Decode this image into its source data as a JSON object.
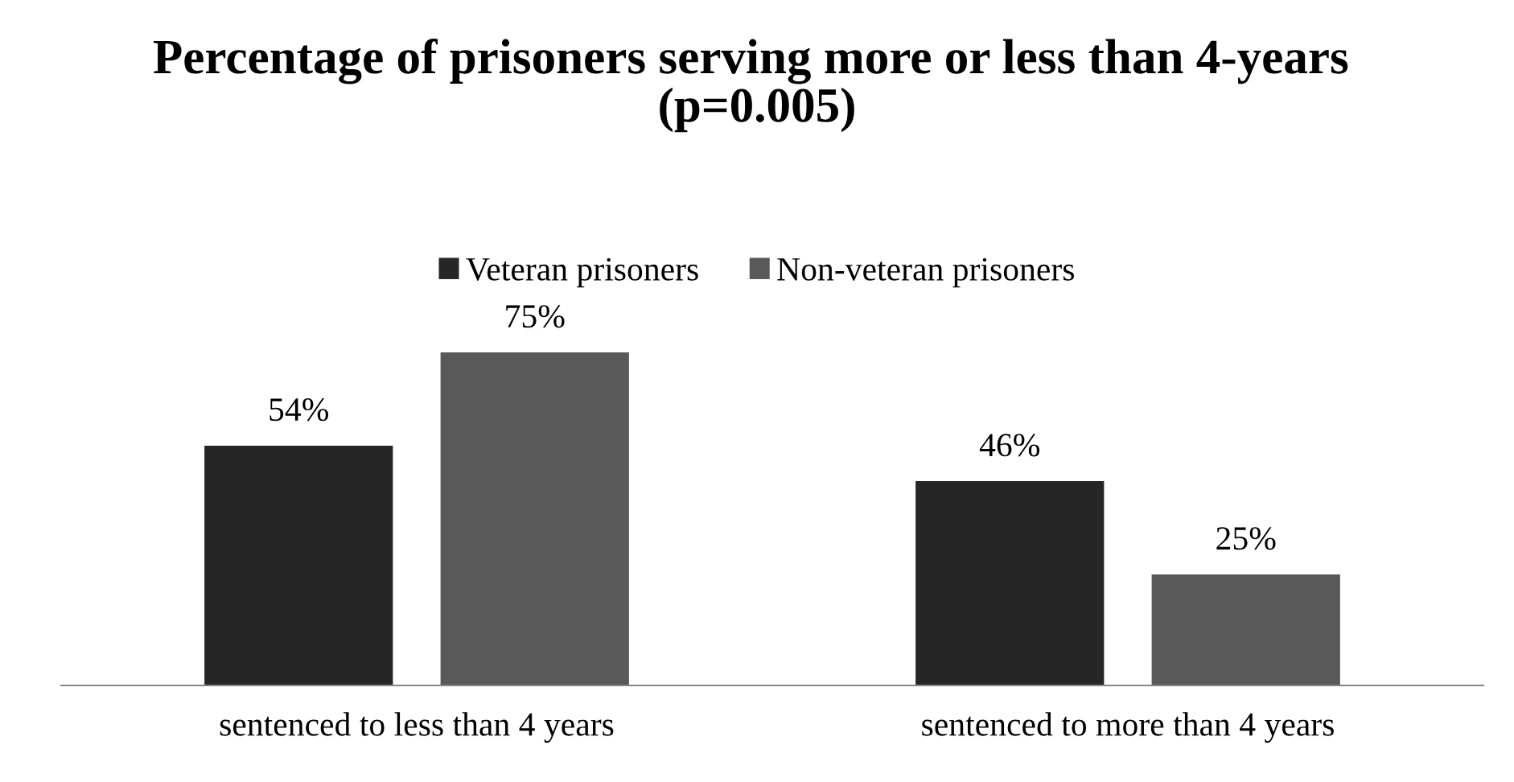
{
  "chart_data": {
    "type": "bar",
    "title": "Percentage of prisoners serving more or less than 4-years  (p=0.005)",
    "categories": [
      "sentenced to less than 4 years",
      "sentenced to more than 4 years"
    ],
    "series": [
      {
        "name": "Veteran prisoners",
        "color": "#262626",
        "values": [
          54,
          46
        ],
        "value_labels": [
          "54%",
          "46%"
        ]
      },
      {
        "name": "Non-veteran prisoners",
        "color": "#595959",
        "values": [
          75,
          25
        ],
        "value_labels": [
          "75%",
          "25%"
        ]
      }
    ],
    "legend": "top"
  }
}
